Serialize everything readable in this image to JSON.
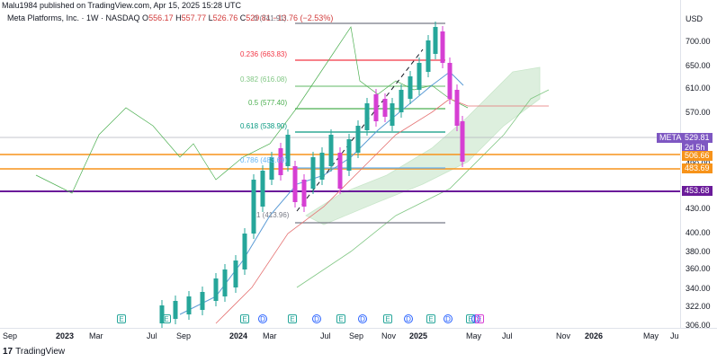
{
  "publish_line": "Malu1984 published on TradingView.com, Apr 15, 2025 15:28 UTC",
  "header": {
    "title": "Meta Platforms, Inc. · 1W · NASDAQ",
    "o_label": "O",
    "o_value": "556.17",
    "h_label": "H",
    "h_value": "557.77",
    "l_label": "L",
    "l_value": "526.76",
    "c_label": "C",
    "c_value": "529.81",
    "change": "−13.76 (−2.53%)"
  },
  "currency": "USD",
  "y_axis_ticks": [
    "700.00",
    "650.00",
    "610.00",
    "570.00",
    "490.00",
    "430.00",
    "400.00",
    "380.00",
    "360.00",
    "340.00",
    "322.00",
    "306.00"
  ],
  "x_axis_ticks": [
    "Sep",
    "2023",
    "Mar",
    "Jul",
    "Sep",
    "2024",
    "Mar",
    "Jul",
    "Sep",
    "Nov",
    "2025",
    "May",
    "Jul",
    "Nov",
    "2026",
    "May",
    "Ju"
  ],
  "bold_x_ticks": [
    "2023",
    "2024",
    "2025",
    "2026"
  ],
  "symbol_badge": {
    "symbol": "META",
    "price": "529.81",
    "countdown": "2d 5h"
  },
  "price_levels": [
    {
      "label": "506.66",
      "color": "#f7931a"
    },
    {
      "label": "483.69",
      "color": "#f7931a"
    },
    {
      "label": "453.68",
      "color": "#6a1b9a"
    }
  ],
  "fib_levels": [
    {
      "ratio": "0 (741.91)",
      "color": "#787b86"
    },
    {
      "ratio": "0.236 (663.83)",
      "color": "#f23645"
    },
    {
      "ratio": "0.382 (616.08)",
      "color": "#81c784"
    },
    {
      "ratio": "0.5 (577.40)",
      "color": "#4caf50"
    },
    {
      "ratio": "0.618 (538.90)",
      "color": "#089981"
    },
    {
      "ratio": "0.786 (483.69)",
      "color": "#64b5f6"
    },
    {
      "ratio": "1 (413.96)",
      "color": "#787b86"
    }
  ],
  "event_markers": [
    "E",
    "E",
    "E",
    "D",
    "E",
    "D",
    "E",
    "D",
    "E",
    "D",
    "E",
    "D",
    "E",
    "D",
    "E"
  ],
  "branding": {
    "logo": "17",
    "name": "TradingView"
  },
  "colors": {
    "up": "#26a69a",
    "down": "#d63fd3",
    "ichimoku_cloud": "#c8e6c9",
    "sma": "#5b9bd5"
  }
}
